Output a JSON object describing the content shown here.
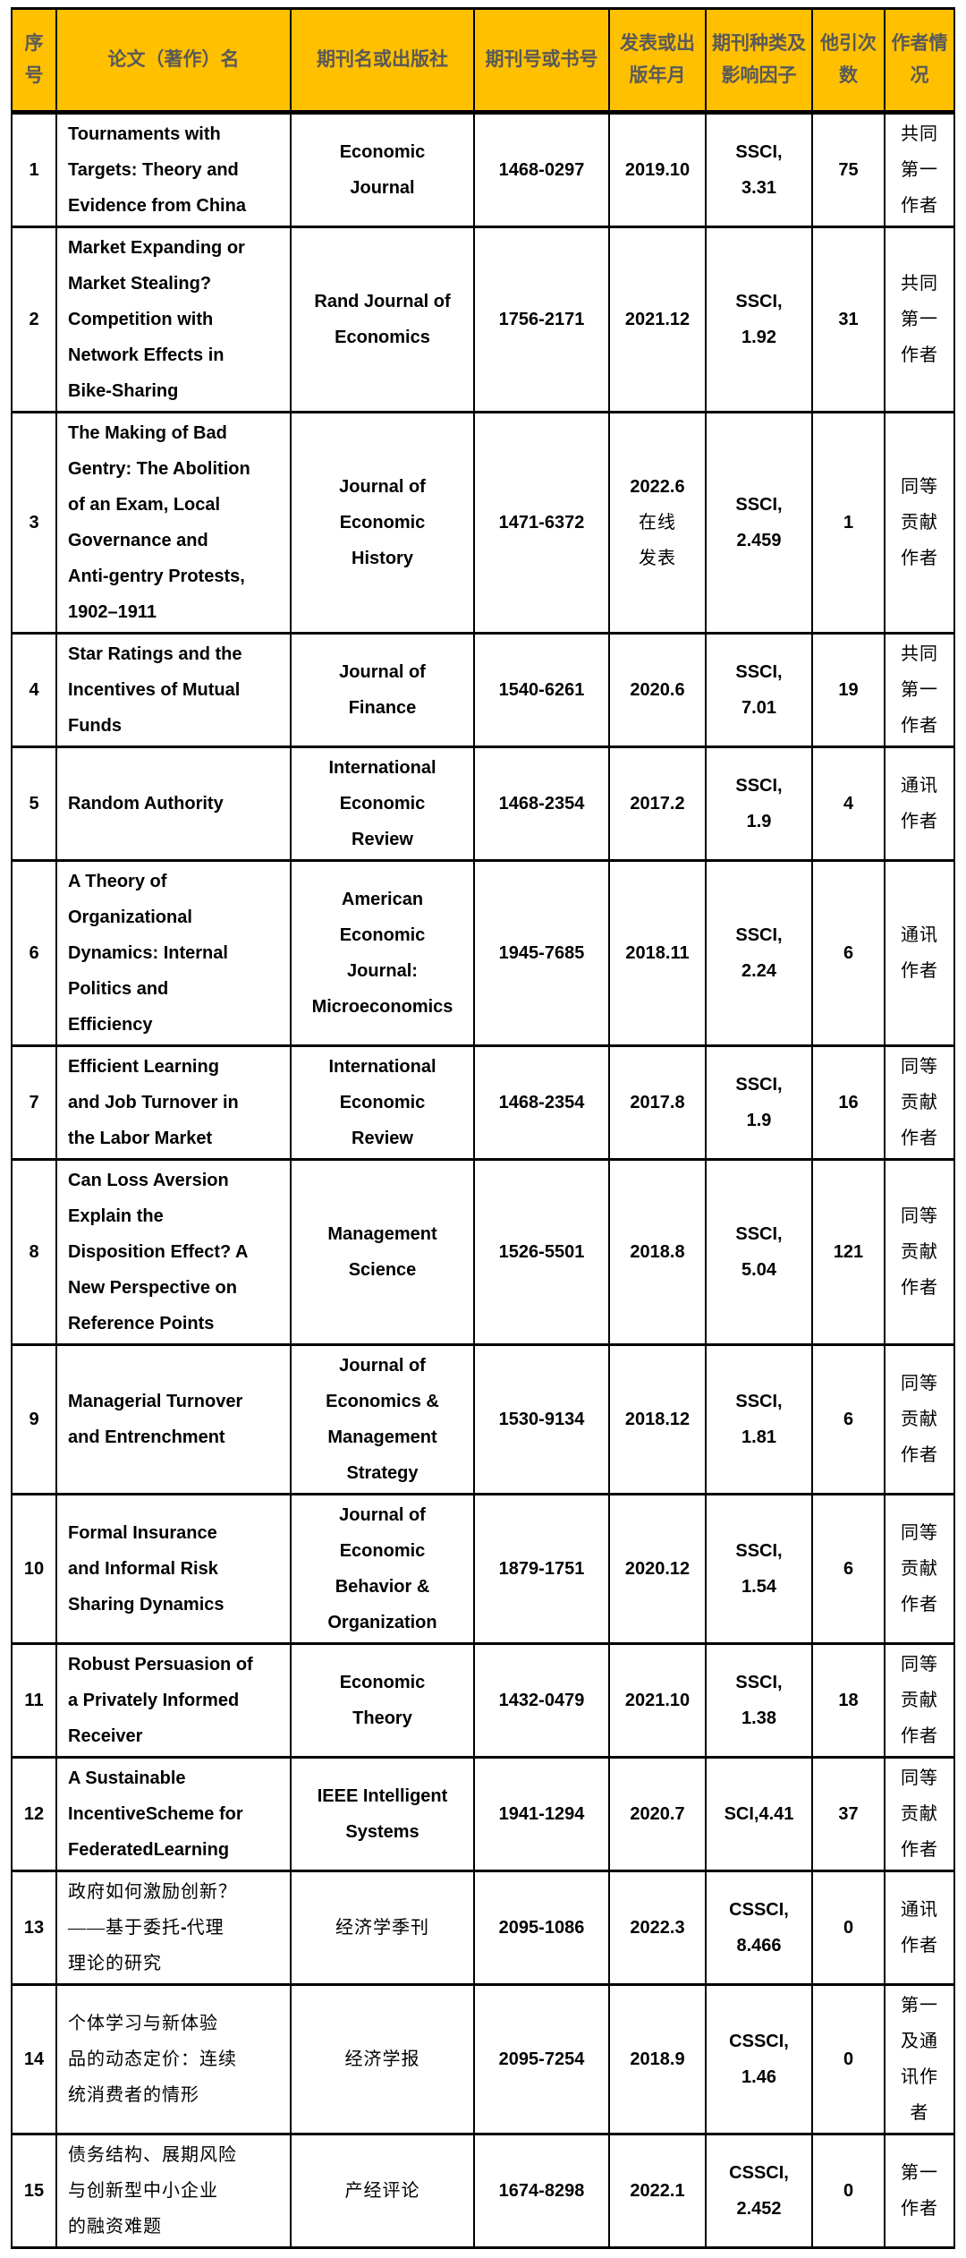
{
  "colors": {
    "header_bg": "#FFC000",
    "header_text": "#595959",
    "border": "#000000",
    "body_text": "#000000"
  },
  "table": {
    "headers": [
      "序号",
      "论文（著作）名",
      "期刊名或出版社",
      "期刊号或书号",
      "发表或出版年月",
      "期刊种类及影响因子",
      "他引次数",
      "作者情况"
    ],
    "rows": [
      {
        "no": "1",
        "title": "Tournaments with\nTargets: Theory and\nEvidence from China",
        "journal": "Economic\nJournal",
        "issn": "1468-0297",
        "date": "2019.10",
        "index": "SSCI,\n3.31",
        "citations": "75",
        "author": "共同\n第一\n作者"
      },
      {
        "no": "2",
        "title": "Market Expanding or\nMarket Stealing?\nCompetition with\nNetwork Effects in\nBike-Sharing",
        "journal": "Rand Journal of\nEconomics",
        "issn": "1756-2171",
        "date": "2021.12",
        "index": "SSCI,\n1.92",
        "citations": "31",
        "author": "共同\n第一\n作者"
      },
      {
        "no": "3",
        "title": "The Making of Bad\nGentry: The Abolition\nof an Exam, Local\nGovernance and\nAnti-gentry Protests,\n1902–1911",
        "journal": "Journal of\nEconomic\nHistory",
        "issn": "1471-6372",
        "date": "2022.6\n在线\n发表",
        "index": "SSCI,\n2.459",
        "citations": "1",
        "author": "同等\n贡献\n作者"
      },
      {
        "no": "4",
        "title": "Star Ratings and the\nIncentives of Mutual\nFunds",
        "journal": "Journal of\nFinance",
        "issn": "1540-6261",
        "date": "2020.6",
        "index": "SSCI,\n7.01",
        "citations": "19",
        "author": "共同\n第一\n作者"
      },
      {
        "no": "5",
        "title": "Random Authority",
        "journal": "International\nEconomic\nReview",
        "issn": "1468-2354",
        "date": "2017.2",
        "index": "SSCI,\n1.9",
        "citations": "4",
        "author": "通讯\n作者"
      },
      {
        "no": "6",
        "title": "A Theory of\nOrganizational\nDynamics: Internal\nPolitics and\nEfficiency",
        "journal": "American\nEconomic\nJournal:\nMicroeconomics",
        "issn": "1945-7685",
        "date": "2018.11",
        "index": "SSCI,\n2.24",
        "citations": "6",
        "author": "通讯\n作者"
      },
      {
        "no": "7",
        "title": "Efficient Learning\nand Job Turnover in\nthe Labor Market",
        "journal": "International\nEconomic\nReview",
        "issn": "1468-2354",
        "date": "2017.8",
        "index": "SSCI,\n1.9",
        "citations": "16",
        "author": "同等\n贡献\n作者"
      },
      {
        "no": "8",
        "title": "Can Loss Aversion\nExplain the\nDisposition Effect? A\nNew Perspective on\nReference Points",
        "journal": "Management\nScience",
        "issn": "1526-5501",
        "date": "2018.8",
        "index": "SSCI,\n5.04",
        "citations": "121",
        "author": "同等\n贡献\n作者"
      },
      {
        "no": "9",
        "title": "Managerial Turnover\nand Entrenchment",
        "journal": "Journal of\nEconomics &\nManagement\nStrategy",
        "issn": "1530-9134",
        "date": "2018.12",
        "index": "SSCI,\n1.81",
        "citations": "6",
        "author": "同等\n贡献\n作者"
      },
      {
        "no": "10",
        "title": "Formal Insurance\nand Informal Risk\nSharing Dynamics",
        "journal": "Journal of\nEconomic\nBehavior &\nOrganization",
        "issn": "1879-1751",
        "date": "2020.12",
        "index": "SSCI,\n1.54",
        "citations": "6",
        "author": "同等\n贡献\n作者"
      },
      {
        "no": "11",
        "title": "Robust Persuasion of\na Privately Informed\nReceiver",
        "journal": "Economic\nTheory",
        "issn": "1432-0479",
        "date": "2021.10",
        "index": "SSCI,\n1.38",
        "citations": "18",
        "author": "同等\n贡献\n作者"
      },
      {
        "no": "12",
        "title": "A Sustainable\nIncentiveScheme for\nFederatedLearning",
        "journal": "IEEE Intelligent\nSystems",
        "issn": "1941-1294",
        "date": "2020.7",
        "index": "SCI,4.41",
        "citations": "37",
        "author": "同等\n贡献\n作者"
      },
      {
        "no": "13",
        "title": "政府如何激励创新？\n——基于委托-代理\n理论的研究",
        "journal": "经济学季刊",
        "issn": "2095-1086",
        "date": "2022.3",
        "index": "CSSCI,\n8.466",
        "citations": "0",
        "author": "通讯\n作者"
      },
      {
        "no": "14",
        "title": "个体学习与新体验\n品的动态定价：连续\n统消费者的情形",
        "journal": "经济学报",
        "issn": "2095-7254",
        "date": "2018.9",
        "index": "CSSCI,\n1.46",
        "citations": "0",
        "author": "第一\n及通\n讯作\n者"
      },
      {
        "no": "15",
        "title": "债务结构、展期风险\n与创新型中小企业\n的融资难题",
        "journal": "产经评论",
        "issn": "1674-8298",
        "date": "2022.1",
        "index": "CSSCI,\n2.452",
        "citations": "0",
        "author": "第一\n作者"
      }
    ]
  }
}
